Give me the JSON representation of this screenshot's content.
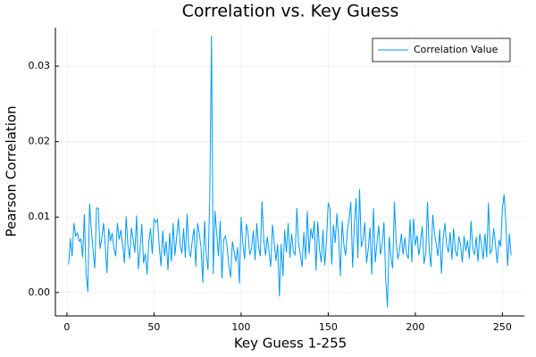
{
  "chart_data": {
    "type": "line",
    "title": "Correlation vs. Key Guess",
    "x_label": "Key Guess 1-255",
    "y_label": "Pearson Correlation",
    "x": [
      1,
      2,
      3,
      4,
      5,
      6,
      7,
      8,
      9,
      10,
      11,
      12,
      13,
      14,
      15,
      16,
      17,
      18,
      19,
      20,
      21,
      22,
      23,
      24,
      25,
      26,
      27,
      28,
      29,
      30,
      31,
      32,
      33,
      34,
      35,
      36,
      37,
      38,
      39,
      40,
      41,
      42,
      43,
      44,
      45,
      46,
      47,
      48,
      49,
      50,
      51,
      52,
      53,
      54,
      55,
      56,
      57,
      58,
      59,
      60,
      61,
      62,
      63,
      64,
      65,
      66,
      67,
      68,
      69,
      70,
      71,
      72,
      73,
      74,
      75,
      76,
      77,
      78,
      79,
      80,
      81,
      82,
      83,
      84,
      85,
      86,
      87,
      88,
      89,
      90,
      91,
      92,
      93,
      94,
      95,
      96,
      97,
      98,
      99,
      100,
      101,
      102,
      103,
      104,
      105,
      106,
      107,
      108,
      109,
      110,
      111,
      112,
      113,
      114,
      115,
      116,
      117,
      118,
      119,
      120,
      121,
      122,
      123,
      124,
      125,
      126,
      127,
      128,
      129,
      130,
      131,
      132,
      133,
      134,
      135,
      136,
      137,
      138,
      139,
      140,
      141,
      142,
      143,
      144,
      145,
      146,
      147,
      148,
      149,
      150,
      151,
      152,
      153,
      154,
      155,
      156,
      157,
      158,
      159,
      160,
      161,
      162,
      163,
      164,
      165,
      166,
      167,
      168,
      169,
      170,
      171,
      172,
      173,
      174,
      175,
      176,
      177,
      178,
      179,
      180,
      181,
      182,
      183,
      184,
      185,
      186,
      187,
      188,
      189,
      190,
      191,
      192,
      193,
      194,
      195,
      196,
      197,
      198,
      199,
      200,
      201,
      202,
      203,
      204,
      205,
      206,
      207,
      208,
      209,
      210,
      211,
      212,
      213,
      214,
      215,
      216,
      217,
      218,
      219,
      220,
      221,
      222,
      223,
      224,
      225,
      226,
      227,
      228,
      229,
      230,
      231,
      232,
      233,
      234,
      235,
      236,
      237,
      238,
      239,
      240,
      241,
      242,
      243,
      244,
      245,
      246,
      247,
      248,
      249,
      250,
      251,
      252,
      253,
      254,
      255
    ],
    "series": [
      {
        "name": "Correlation Value",
        "color": "#009af9",
        "values": [
          0.0037,
          0.0072,
          0.0048,
          0.0092,
          0.0075,
          0.0079,
          0.0068,
          0.0071,
          0.0047,
          0.0104,
          0.0025,
          0.0001,
          0.0118,
          0.0085,
          0.0056,
          0.0032,
          0.0112,
          0.0112,
          0.0058,
          0.0072,
          0.0092,
          0.0063,
          0.0026,
          0.0085,
          0.0068,
          0.0079,
          0.0058,
          0.0048,
          0.0092,
          0.007,
          0.0083,
          0.0064,
          0.0039,
          0.0101,
          0.0063,
          0.0045,
          0.0086,
          0.007,
          0.0053,
          0.0102,
          0.0031,
          0.0057,
          0.0091,
          0.0039,
          0.0052,
          0.0024,
          0.0067,
          0.0085,
          0.0051,
          0.0098,
          0.0093,
          0.0097,
          0.0062,
          0.0035,
          0.0082,
          0.0048,
          0.0068,
          0.003,
          0.0079,
          0.0041,
          0.0092,
          0.0049,
          0.0074,
          0.0098,
          0.0063,
          0.0052,
          0.0085,
          0.0046,
          0.0104,
          0.0057,
          0.0047,
          0.007,
          0.0085,
          0.0034,
          0.0092,
          0.0078,
          0.006,
          0.0013,
          0.0095,
          0.005,
          0.003,
          0.0125,
          0.034,
          0.0025,
          0.0108,
          0.0078,
          0.0048,
          0.0095,
          0.0019,
          0.007,
          0.0075,
          0.006,
          0.0035,
          0.002,
          0.0068,
          0.0054,
          0.0041,
          0.006,
          0.0012,
          0.01,
          0.0065,
          0.0044,
          0.0091,
          0.0078,
          0.005,
          0.0058,
          0.0082,
          0.0043,
          0.0092,
          0.0061,
          0.0048,
          0.0121,
          0.007,
          0.0049,
          0.0074,
          0.0055,
          0.0034,
          0.009,
          0.0067,
          0.0042,
          0.0064,
          -0.0005,
          0.0065,
          0.0022,
          0.0083,
          0.0053,
          0.0092,
          0.0046,
          0.0078,
          0.0054,
          0.005,
          0.0112,
          0.0065,
          0.005,
          0.0034,
          0.008,
          0.0044,
          0.0108,
          0.0051,
          0.0085,
          0.0071,
          0.0095,
          0.0029,
          0.0094,
          0.0057,
          0.004,
          0.0083,
          0.0036,
          0.0068,
          0.0119,
          0.0111,
          0.0037,
          0.009,
          0.0066,
          0.0105,
          0.0072,
          0.0022,
          0.0095,
          0.0063,
          0.0049,
          0.0082,
          0.0098,
          0.012,
          0.0033,
          0.009,
          0.0125,
          0.0046,
          0.0137,
          0.006,
          0.007,
          0.0093,
          0.0039,
          0.0058,
          0.0086,
          0.0024,
          0.0112,
          0.004,
          0.0066,
          0.0089,
          0.005,
          0.0064,
          0.0093,
          0.0019,
          -0.002,
          0.0074,
          0.0047,
          0.0032,
          0.012,
          0.0067,
          0.0044,
          0.0057,
          0.0078,
          0.005,
          0.0073,
          0.0051,
          0.0045,
          0.0097,
          0.004,
          0.0098,
          0.0062,
          0.0076,
          0.0049,
          0.0067,
          0.0088,
          0.0038,
          0.0052,
          0.012,
          0.0054,
          0.0034,
          0.0103,
          0.0079,
          0.0064,
          0.0048,
          0.0084,
          0.0025,
          0.0071,
          0.0092,
          0.0063,
          0.0053,
          0.008,
          0.0044,
          0.0085,
          0.0055,
          0.0048,
          0.0074,
          0.0063,
          0.004,
          0.0075,
          0.0055,
          0.0069,
          0.0045,
          0.0095,
          0.0058,
          0.005,
          0.0074,
          0.0041,
          0.0078,
          0.0063,
          0.0044,
          0.0078,
          0.0047,
          0.0119,
          0.0052,
          0.0056,
          0.0085,
          0.0064,
          0.0039,
          0.007,
          0.0061,
          0.0112,
          0.013,
          0.0092,
          0.0035,
          0.0078,
          0.0049
        ]
      }
    ],
    "xlim": [
      -6.62,
      262.62
    ],
    "xticks": [
      0,
      50,
      100,
      150,
      200,
      250
    ],
    "ylim": [
      -0.0031,
      0.0351
    ],
    "yticks": [
      {
        "value": 0,
        "label": "0.00"
      },
      0.01,
      0.02,
      0.03
    ],
    "grid": true,
    "legend": "top-right"
  }
}
